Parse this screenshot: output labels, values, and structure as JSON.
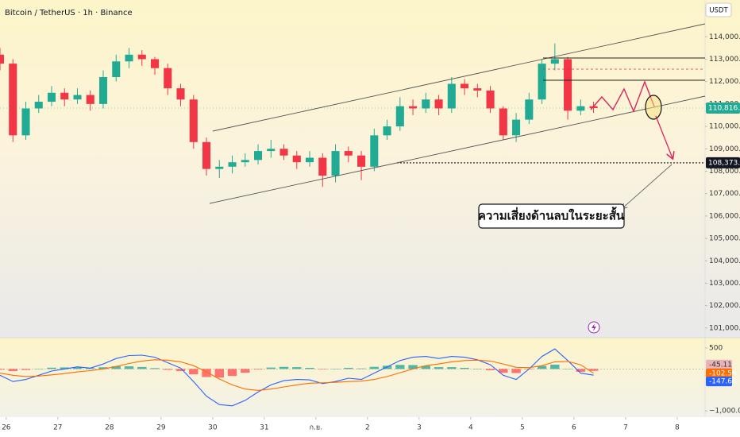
{
  "chart_data": [
    {
      "type": "candlestick",
      "title": "Bitcoin / TetherUS · 1h · Binance",
      "currency": "USDT",
      "annotation": "ความเสี่ยงด้านลบในระยะสั้น",
      "up_color": "#22ab94",
      "down_color": "#f23645",
      "x": [
        -0.12,
        0.13,
        0.38,
        0.63,
        0.88,
        1.13,
        1.38,
        1.63,
        1.88,
        2.13,
        2.38,
        2.63,
        2.88,
        3.13,
        3.38,
        3.63,
        3.88,
        4.13,
        4.38,
        4.63,
        4.88,
        5.13,
        5.38,
        5.63,
        5.88,
        6.13,
        6.38,
        6.63,
        6.88,
        7.13,
        7.38,
        7.63,
        7.88,
        8.13,
        8.38,
        8.63,
        8.88,
        9.13,
        9.38,
        9.63,
        9.88,
        10.13,
        10.38,
        10.63,
        10.88,
        11.13,
        11.38
      ],
      "open": [
        113200,
        112800,
        109600,
        110800,
        111100,
        111500,
        111200,
        111400,
        111000,
        112200,
        112900,
        113200,
        113000,
        112600,
        111700,
        111200,
        109300,
        108100,
        108200,
        108400,
        108500,
        108900,
        109000,
        108700,
        108400,
        108600,
        107800,
        108900,
        108700,
        108200,
        109600,
        110000,
        110900,
        110800,
        111200,
        110800,
        111900,
        111700,
        111600,
        110800,
        109600,
        110300,
        111200,
        112800,
        113000,
        110700,
        110900
      ],
      "high": [
        113500,
        113000,
        111100,
        111400,
        111800,
        111700,
        111700,
        111600,
        112500,
        113200,
        113500,
        113400,
        113100,
        112800,
        111900,
        111400,
        109500,
        108500,
        108700,
        108800,
        109200,
        109400,
        109200,
        108900,
        108900,
        108800,
        109200,
        109100,
        108900,
        109900,
        110300,
        111300,
        111200,
        111500,
        111400,
        112200,
        112100,
        111900,
        111800,
        110900,
        110600,
        111500,
        113000,
        113700,
        113100,
        111200,
        111100
      ],
      "low": [
        112500,
        109300,
        109400,
        110600,
        110900,
        110900,
        111000,
        110700,
        110800,
        112000,
        112600,
        112700,
        112300,
        111400,
        110900,
        109000,
        107800,
        107700,
        107900,
        108200,
        108300,
        108600,
        108500,
        108100,
        108200,
        107300,
        107500,
        108400,
        107600,
        108000,
        109400,
        109800,
        110500,
        110600,
        110500,
        110600,
        111400,
        111300,
        110600,
        109400,
        109300,
        110100,
        111000,
        112500,
        110300,
        110500,
        110600
      ],
      "close": [
        112800,
        109600,
        110800,
        111100,
        111500,
        111200,
        111400,
        111000,
        112200,
        112900,
        113200,
        113000,
        112600,
        111700,
        111200,
        109300,
        108100,
        108200,
        108400,
        108500,
        108900,
        109000,
        108700,
        108400,
        108600,
        107800,
        108900,
        108700,
        108200,
        109600,
        110000,
        110900,
        110800,
        111200,
        110800,
        111900,
        111700,
        111600,
        110800,
        109600,
        110300,
        111200,
        112800,
        113000,
        110700,
        110900,
        110816.99
      ],
      "xlim": [
        -0.12,
        13.54
      ],
      "xticks": [
        {
          "value": 0,
          "label": "26"
        },
        {
          "value": 1,
          "label": "27"
        },
        {
          "value": 2,
          "label": "28"
        },
        {
          "value": 3,
          "label": "29"
        },
        {
          "value": 4,
          "label": "30"
        },
        {
          "value": 5,
          "label": "31"
        },
        {
          "value": 6,
          "label": "ก.ย."
        },
        {
          "value": 7,
          "label": "2"
        },
        {
          "value": 8,
          "label": "3"
        },
        {
          "value": 9,
          "label": "4"
        },
        {
          "value": 10,
          "label": "5"
        },
        {
          "value": 11,
          "label": "6"
        },
        {
          "value": 12,
          "label": "7"
        },
        {
          "value": 13,
          "label": "8"
        }
      ],
      "ylim": [
        100570,
        115640
      ],
      "yticks": [
        {
          "value": 101000,
          "label": "101,000.00"
        },
        {
          "value": 102000,
          "label": "102,000.00"
        },
        {
          "value": 103000,
          "label": "103,000.00"
        },
        {
          "value": 104000,
          "label": "104,000.00"
        },
        {
          "value": 105000,
          "label": "105,000.00"
        },
        {
          "value": 106000,
          "label": "106,000.00"
        },
        {
          "value": 107000,
          "label": "107,000.00"
        },
        {
          "value": 108000,
          "label": "108,000.00"
        },
        {
          "value": 109000,
          "label": "109,000.00"
        },
        {
          "value": 110000,
          "label": "110,000.00"
        },
        {
          "value": 111000,
          "label": "111,000.00"
        },
        {
          "value": 112000,
          "label": "112,000.00"
        },
        {
          "value": 113000,
          "label": "113,000.00"
        },
        {
          "value": 114000,
          "label": "114,000.00"
        }
      ],
      "price_markers": [
        {
          "value": 110816.99,
          "label": "110,816.99",
          "color": "#22ab94"
        },
        {
          "value": 108373.53,
          "label": "108,373.53",
          "color": "#131722"
        }
      ]
    },
    {
      "type": "macd",
      "x": [
        -0.12,
        0.13,
        0.38,
        0.63,
        0.88,
        1.13,
        1.38,
        1.63,
        1.88,
        2.13,
        2.38,
        2.63,
        2.88,
        3.13,
        3.38,
        3.63,
        3.88,
        4.13,
        4.38,
        4.63,
        4.88,
        5.13,
        5.38,
        5.63,
        5.88,
        6.13,
        6.38,
        6.63,
        6.88,
        7.13,
        7.38,
        7.63,
        7.88,
        8.13,
        8.38,
        8.63,
        8.88,
        9.13,
        9.38,
        9.63,
        9.88,
        10.13,
        10.38,
        10.63,
        10.88,
        11.13,
        11.38
      ],
      "histogram": {
        "pos_color": "#26a69a",
        "neg_color": "#ff5252",
        "values": [
          -17,
          -50,
          -23,
          7,
          30,
          37,
          40,
          20,
          40,
          63,
          63,
          47,
          20,
          -20,
          -50,
          -127,
          -193,
          -203,
          -167,
          -90,
          -13,
          33,
          50,
          43,
          27,
          -7,
          7,
          27,
          13,
          50,
          77,
          97,
          93,
          73,
          43,
          43,
          27,
          3,
          -30,
          -90,
          -97,
          -10,
          73,
          103,
          7,
          -67,
          -45.11
        ]
      },
      "series": [
        {
          "color": "#2962ff",
          "values": [
            -150,
            -300,
            -250,
            -150,
            -50,
            0,
            50,
            20,
            120,
            250,
            320,
            330,
            280,
            150,
            20,
            -300,
            -650,
            -850,
            -880,
            -750,
            -550,
            -380,
            -280,
            -250,
            -260,
            -350,
            -300,
            -220,
            -250,
            -100,
            50,
            200,
            280,
            300,
            250,
            300,
            280,
            220,
            100,
            -150,
            -250,
            0,
            300,
            480,
            200,
            -100,
            -147.68
          ]
        },
        {
          "color": "#ff6d00",
          "values": [
            -100,
            -150,
            -180,
            -170,
            -140,
            -110,
            -70,
            -40,
            0,
            60,
            130,
            190,
            220,
            210,
            170,
            80,
            -70,
            -240,
            -380,
            -480,
            -510,
            -480,
            -430,
            -380,
            -340,
            -330,
            -320,
            -300,
            -290,
            -250,
            -180,
            -90,
            0,
            80,
            120,
            170,
            200,
            210,
            190,
            120,
            40,
            30,
            80,
            170,
            180,
            100,
            -102.56
          ]
        }
      ],
      "xlim": [
        -0.12,
        13.54
      ],
      "ylim": [
        -1150,
        747
      ],
      "yticks": [
        500,
        {
          "value": -1000,
          "label": "−1,000.00"
        }
      ],
      "markers": [
        {
          "value": -45.11,
          "label": "-45.11",
          "color": "#e8b4b8"
        },
        {
          "value": -102.56,
          "label": "-102.56",
          "color": "#ff6d00"
        },
        {
          "value": -147.68,
          "label": "-147.68",
          "color": "#2962ff"
        }
      ]
    }
  ]
}
